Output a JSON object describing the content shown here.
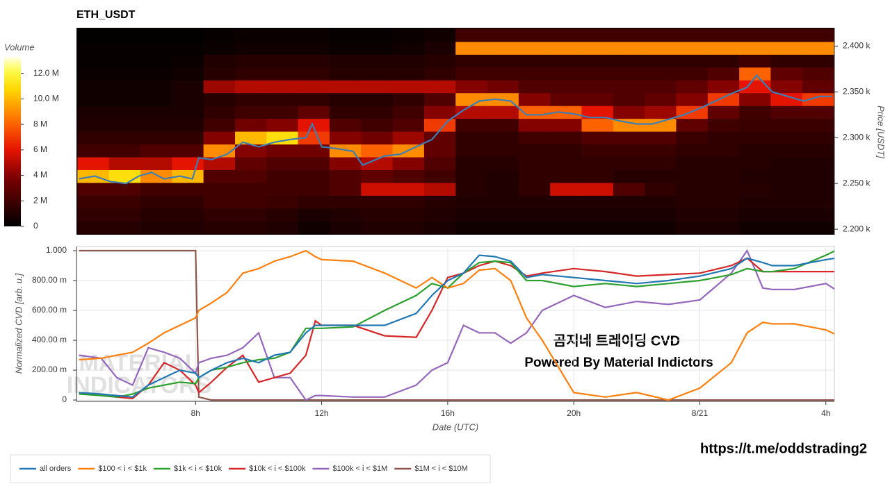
{
  "chart_data": [
    {
      "type": "heatmap",
      "title": "ETH_USDT",
      "ylabel": "Price [USDT]",
      "xlim": [
        4.22,
        28.27
      ],
      "ylim": [
        2194,
        2420
      ],
      "yticks": [
        {
          "value": 2200,
          "label": "2.200 k"
        },
        {
          "value": 2250,
          "label": "2.250 k"
        },
        {
          "value": 2300,
          "label": "2.300 k"
        },
        {
          "value": 2350,
          "label": "2.350 k"
        },
        {
          "value": 2400,
          "label": "2.400 k"
        }
      ],
      "x_bins": [
        4.25,
        5.25,
        6.25,
        7.25,
        8.25,
        9.25,
        10.25,
        11.25,
        12.25,
        13.25,
        14.25,
        15.25,
        16.25,
        17.25,
        18.25,
        19.25,
        20.25,
        21.25,
        22.25,
        23.25,
        24.25,
        25.25,
        26.25,
        27.25,
        28.25
      ],
      "y_bins": [
        2195,
        2209,
        2223,
        2237,
        2251,
        2265,
        2279,
        2293,
        2307,
        2321,
        2335,
        2349,
        2363,
        2377,
        2391,
        2405,
        2419
      ],
      "z": [
        [
          1.2,
          1.2,
          1.0,
          1.0,
          1.2,
          1.2,
          1.0,
          0.5,
          0.8,
          1.0,
          1.0,
          0.8,
          0.5,
          0.5,
          0.5,
          0.5,
          0.5,
          0.5,
          0.5,
          0.8,
          0.8,
          0.5,
          0.5,
          0.5
        ],
        [
          1.5,
          1.5,
          1.2,
          1.2,
          1.5,
          1.5,
          1.2,
          0.8,
          1.0,
          1.2,
          1.2,
          1.0,
          0.8,
          0.8,
          0.8,
          0.8,
          0.8,
          0.8,
          0.8,
          1.0,
          1.0,
          0.8,
          0.8,
          0.8
        ],
        [
          1.8,
          1.8,
          1.5,
          1.5,
          2.0,
          2.0,
          1.8,
          1.5,
          1.5,
          1.5,
          1.5,
          1.2,
          1.0,
          1.0,
          1.0,
          1.0,
          1.0,
          1.0,
          1.0,
          1.2,
          1.2,
          1.0,
          1.0,
          1.0
        ],
        [
          2.5,
          2.5,
          2.0,
          2.0,
          2.0,
          2.0,
          2.0,
          2.0,
          2.5,
          5.5,
          5.5,
          5.0,
          1.2,
          1.0,
          1.5,
          5.5,
          5.5,
          2.5,
          1.5,
          1.2,
          1.2,
          1.2,
          1.0,
          1.0
        ],
        [
          10,
          11,
          9,
          10,
          2.5,
          2.5,
          2.0,
          2.0,
          2.5,
          3.0,
          2.5,
          2.0,
          1.2,
          1.0,
          1.5,
          1.5,
          1.5,
          1.2,
          1.2,
          1.2,
          1.2,
          1.0,
          1.0,
          1.0
        ],
        [
          6,
          5,
          5,
          6,
          5,
          3.0,
          2.5,
          2.5,
          4.0,
          5.0,
          4.0,
          2.5,
          1.2,
          1.2,
          1.5,
          1.5,
          1.5,
          1.5,
          1.5,
          1.2,
          1.2,
          1.2,
          1.0,
          1.0
        ],
        [
          2.0,
          2.0,
          2.5,
          2.5,
          9,
          4.0,
          3.5,
          3.5,
          9,
          8,
          9,
          3.0,
          1.5,
          1.5,
          1.5,
          1.5,
          1.8,
          1.8,
          1.8,
          1.5,
          1.5,
          1.2,
          1.2,
          1.2
        ],
        [
          1.5,
          1.5,
          1.5,
          1.5,
          4.0,
          10,
          11,
          7,
          4.0,
          3.5,
          4.5,
          3.0,
          1.5,
          1.5,
          2.0,
          2.0,
          2.5,
          2.5,
          2.5,
          1.8,
          1.5,
          1.5,
          1.5,
          1.5
        ],
        [
          1.0,
          1.0,
          1.0,
          1.0,
          2.0,
          3.5,
          4.0,
          6,
          2.5,
          2.0,
          2.5,
          7,
          2.0,
          2.0,
          4.0,
          4.0,
          8,
          9,
          9,
          3.0,
          2.0,
          1.8,
          1.8,
          1.8
        ],
        [
          0.8,
          0.8,
          0.8,
          0.8,
          1.5,
          2.0,
          2.0,
          3.0,
          1.5,
          1.5,
          2.0,
          4.0,
          5,
          5,
          8,
          8,
          6,
          4.0,
          4.5,
          7,
          3.0,
          2.0,
          2.5,
          2.5
        ],
        [
          0.5,
          0.5,
          0.5,
          0.8,
          1.2,
          1.5,
          1.5,
          1.5,
          1.2,
          1.2,
          1.5,
          2.5,
          9,
          9,
          4.0,
          3.0,
          3.0,
          2.5,
          3.0,
          4.0,
          7,
          4.0,
          6,
          7
        ],
        [
          0.5,
          0.5,
          0.5,
          0.8,
          4.5,
          5,
          5,
          5,
          5,
          5,
          5,
          5,
          4.0,
          3.5,
          2.5,
          2.5,
          2.5,
          2.5,
          2.5,
          3.0,
          4.0,
          6,
          4.0,
          3.0
        ],
        [
          0.3,
          0.3,
          0.3,
          0.5,
          1.2,
          1.5,
          1.5,
          1.5,
          1.2,
          1.2,
          1.2,
          1.5,
          2.0,
          2.0,
          2.0,
          2.0,
          2.0,
          2.0,
          2.0,
          2.0,
          2.5,
          8,
          3.0,
          2.5
        ],
        [
          0.2,
          0.2,
          0.2,
          0.3,
          1.0,
          1.2,
          1.2,
          1.2,
          1.0,
          1.0,
          1.0,
          1.2,
          1.5,
          1.5,
          1.5,
          1.5,
          1.5,
          1.5,
          1.5,
          1.5,
          1.5,
          2.0,
          1.5,
          1.5
        ],
        [
          0.2,
          0.2,
          0.2,
          0.2,
          0.3,
          0.5,
          0.5,
          0.5,
          0.3,
          0.3,
          0.5,
          0.8,
          9,
          9,
          9,
          9,
          9,
          9,
          9,
          9,
          9,
          9,
          9,
          9
        ],
        [
          0.1,
          0.1,
          0.1,
          0.1,
          0.2,
          0.3,
          0.3,
          0.3,
          0.2,
          0.2,
          0.3,
          0.5,
          2.0,
          2.0,
          2.0,
          2.0,
          2.0,
          2.0,
          2.0,
          2.0,
          2.0,
          2.0,
          2.0,
          2.0
        ]
      ],
      "colorbar": {
        "label": "Volume",
        "lim": [
          0,
          13.4
        ],
        "ticks": [
          0,
          {
            "value": 2,
            "label": "2 M"
          },
          {
            "value": 4,
            "label": "4 M"
          },
          {
            "value": 6,
            "label": "6 M"
          },
          {
            "value": 8,
            "label": "8 M"
          },
          {
            "value": 10,
            "label": "10.0 M"
          },
          {
            "value": 12,
            "label": "12.0 M"
          }
        ]
      },
      "price": {
        "color": "#3d7fb5",
        "x": [
          4.3,
          4.8,
          5.3,
          5.8,
          6.2,
          6.6,
          7,
          7.5,
          7.9,
          8.1,
          8.5,
          9,
          9.5,
          10,
          10.5,
          11,
          11.5,
          11.7,
          12,
          12.5,
          13,
          13.3,
          14,
          14.5,
          15,
          15.5,
          16,
          16.5,
          17,
          17.5,
          18,
          18.5,
          19,
          19.5,
          20,
          20.5,
          21,
          21.5,
          22,
          22.5,
          23,
          23.5,
          24,
          24.5,
          25,
          25.5,
          25.8,
          26.3,
          26.8,
          27.3,
          27.8,
          28.2
        ],
        "y": [
          2255,
          2258,
          2252,
          2250,
          2258,
          2262,
          2255,
          2258,
          2255,
          2278,
          2276,
          2282,
          2295,
          2290,
          2295,
          2298,
          2300,
          2315,
          2290,
          2288,
          2285,
          2270,
          2280,
          2282,
          2290,
          2298,
          2318,
          2330,
          2340,
          2342,
          2340,
          2325,
          2325,
          2328,
          2326,
          2322,
          2322,
          2318,
          2315,
          2315,
          2320,
          2325,
          2332,
          2340,
          2348,
          2355,
          2368,
          2350,
          2345,
          2340,
          2345,
          2345
        ]
      }
    },
    {
      "type": "line",
      "xlabel": "Date (UTC)",
      "ylabel": "Normalized CVD [arb. u.]",
      "grid": true,
      "xlim": [
        4.22,
        28.27
      ],
      "ylim": [
        -0.009,
        1.028
      ],
      "xticks": [
        {
          "value": 8,
          "label": "8h"
        },
        {
          "value": 12,
          "label": "12h"
        },
        {
          "value": 16,
          "label": "16h"
        },
        {
          "value": 20,
          "label": "20h"
        },
        {
          "value": 24,
          "label": "8/21"
        },
        {
          "value": 28,
          "label": "4h"
        }
      ],
      "yticks": [
        0,
        {
          "value": 0.2,
          "label": "200.00 m"
        },
        {
          "value": 0.4,
          "label": "400.00 m"
        },
        {
          "value": 0.6,
          "label": "600.00 m"
        },
        {
          "value": 0.8,
          "label": "800.00 m"
        },
        {
          "value": 1,
          "label": "1.000"
        }
      ],
      "x": [
        4.3,
        5,
        5.5,
        6,
        6.5,
        7,
        7.5,
        8,
        8.1,
        8.5,
        9,
        9.5,
        10,
        10.5,
        11,
        11.5,
        11.8,
        12,
        13,
        14,
        15,
        15.5,
        16,
        16.5,
        17,
        17.5,
        18,
        18.5,
        19,
        20,
        21,
        22,
        23,
        24,
        25,
        25.5,
        26,
        26.3,
        27,
        28,
        28.3
      ],
      "series": [
        {
          "name": "all orders",
          "color": "#1f77b4",
          "values": [
            0.05,
            0.04,
            0.03,
            0.02,
            0.1,
            0.15,
            0.2,
            0.18,
            0.15,
            0.2,
            0.25,
            0.28,
            0.25,
            0.3,
            0.32,
            0.45,
            0.5,
            0.5,
            0.5,
            0.5,
            0.58,
            0.7,
            0.8,
            0.85,
            0.97,
            0.96,
            0.93,
            0.82,
            0.84,
            0.82,
            0.8,
            0.78,
            0.8,
            0.83,
            0.88,
            0.95,
            0.92,
            0.9,
            0.9,
            0.94,
            0.95
          ]
        },
        {
          "name": "$100 < i < $1k",
          "color": "#ff7f0e",
          "values": [
            0.27,
            0.28,
            0.3,
            0.32,
            0.38,
            0.45,
            0.5,
            0.55,
            0.6,
            0.65,
            0.72,
            0.85,
            0.88,
            0.93,
            0.96,
            1.0,
            0.96,
            0.94,
            0.93,
            0.85,
            0.75,
            0.82,
            0.75,
            0.78,
            0.87,
            0.88,
            0.8,
            0.55,
            0.4,
            0.05,
            0.02,
            0.05,
            0.0,
            0.08,
            0.25,
            0.45,
            0.52,
            0.51,
            0.51,
            0.47,
            0.44
          ]
        },
        {
          "name": "$1k < i < $10k",
          "color": "#2ca02c",
          "values": [
            0.04,
            0.03,
            0.02,
            0.04,
            0.08,
            0.1,
            0.12,
            0.11,
            0.15,
            0.2,
            0.22,
            0.25,
            0.27,
            0.28,
            0.32,
            0.48,
            0.48,
            0.48,
            0.49,
            0.6,
            0.7,
            0.78,
            0.75,
            0.85,
            0.92,
            0.93,
            0.92,
            0.8,
            0.8,
            0.76,
            0.78,
            0.76,
            0.78,
            0.8,
            0.84,
            0.88,
            0.86,
            0.86,
            0.88,
            0.97,
            1.0
          ]
        },
        {
          "name": "$10k < i < $100k",
          "color": "#d62728",
          "values": [
            0.05,
            0.03,
            0.02,
            0.01,
            0.1,
            0.25,
            0.2,
            0.1,
            0.05,
            0.12,
            0.22,
            0.3,
            0.12,
            0.15,
            0.18,
            0.3,
            0.53,
            0.5,
            0.5,
            0.43,
            0.42,
            0.6,
            0.82,
            0.85,
            0.9,
            0.93,
            0.9,
            0.83,
            0.85,
            0.88,
            0.86,
            0.83,
            0.84,
            0.85,
            0.9,
            0.95,
            0.86,
            0.86,
            0.86,
            0.86,
            0.86
          ]
        },
        {
          "name": "$100k < i < $1M",
          "color": "#9467bd",
          "values": [
            0.3,
            0.28,
            0.15,
            0.1,
            0.35,
            0.32,
            0.28,
            0.18,
            0.25,
            0.28,
            0.3,
            0.35,
            0.45,
            0.15,
            0.15,
            0.0,
            0.03,
            0.03,
            0.02,
            0.02,
            0.1,
            0.2,
            0.25,
            0.5,
            0.45,
            0.45,
            0.38,
            0.45,
            0.6,
            0.7,
            0.62,
            0.66,
            0.64,
            0.67,
            0.85,
            1.0,
            0.75,
            0.74,
            0.74,
            0.78,
            0.74
          ]
        },
        {
          "name": "$1M < i < $10M",
          "color": "#8c564b",
          "values": [
            1,
            1,
            1,
            1,
            1,
            1,
            1,
            1,
            0.02,
            0,
            0,
            0,
            0,
            0,
            0,
            0,
            0,
            0,
            0,
            0,
            0,
            0,
            0,
            0,
            0,
            0,
            0,
            0,
            0,
            0,
            0,
            0,
            0,
            0,
            0,
            0,
            0,
            0,
            0,
            0,
            0
          ]
        }
      ]
    }
  ],
  "annotations": [
    "곰지네 트레이딩 CVD",
    "Powered By Material Indictors",
    "https://t.me/oddstrading2"
  ],
  "watermark": [
    "MATERIAL",
    "INDICATORS"
  ]
}
